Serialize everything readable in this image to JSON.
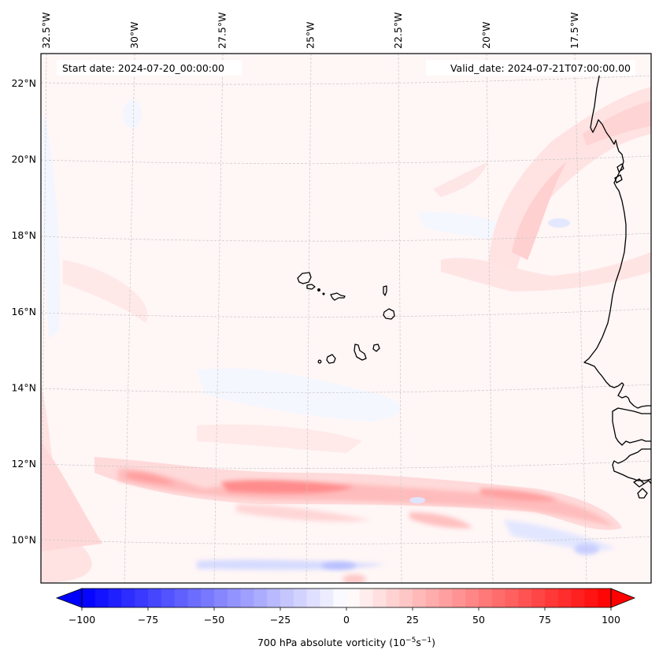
{
  "figure": {
    "start_date_text": "Start date: 2024-07-20_00:00:00",
    "valid_date_text": "Valid_date: 2024-07-21T07:00:00.00"
  },
  "chart_data": {
    "type": "heatmap",
    "title": "",
    "variable": "700 hPa absolute vorticity",
    "units_base": "10",
    "units_exp1": "−5",
    "units_mid": "s",
    "units_exp2": "−1",
    "colorbar_label_prefix": "700 hPa absolute vorticity (10",
    "colorbar_label_suffix": ")",
    "colormap": "bwr",
    "color_low": "#0000ff",
    "color_mid": "#ffffff",
    "color_high": "#ff0000",
    "levels": {
      "min": -100,
      "max": 100,
      "step": 5
    },
    "extend": "both",
    "colorbar_ticks": [
      -100,
      -75,
      -50,
      -25,
      0,
      25,
      50,
      75,
      100
    ],
    "colorbar_tick_labels": [
      "−100",
      "−75",
      "−50",
      "−25",
      "0",
      "25",
      "50",
      "75",
      "100"
    ],
    "lon_ticks": [
      -32.5,
      -30,
      -27.5,
      -25,
      -22.5,
      -20,
      -17.5
    ],
    "lon_tick_labels": [
      "32.5°W",
      "30°W",
      "27.5°W",
      "25°W",
      "22.5°W",
      "20°W",
      "17.5°W"
    ],
    "lat_ticks": [
      22,
      20,
      18,
      16,
      14,
      12,
      10
    ],
    "lat_tick_labels": [
      "22°N",
      "20°N",
      "18°N",
      "16°N",
      "14°N",
      "12°N",
      "10°N"
    ],
    "extent": {
      "lon": [
        -32.6,
        -15.2
      ],
      "lat": [
        8.9,
        22.8
      ]
    },
    "gridlines": true,
    "colorbar_position": "bottom",
    "features": [
      {
        "name": "vorticity-band-itcz",
        "lat": 11.3,
        "lon_start": -31.5,
        "lon_end": -16.0,
        "peak": 45,
        "description": "Zonal band of positive vorticity along ~11-12°N"
      },
      {
        "name": "negative-band-south",
        "lat": 9.4,
        "lon_start": -28.5,
        "lon_end": -23.0,
        "peak": -25,
        "description": "Weak negative vorticity strip near 9.5°N"
      },
      {
        "name": "negative-patch-se",
        "lat": 9.9,
        "lon_start": -18.5,
        "lon_end": -16.5,
        "peak": -20
      },
      {
        "name": "positive-streaks-ne",
        "lat": 19.0,
        "lon_start": -21.0,
        "lon_end": -15.3,
        "peak": 20,
        "description": "NE-SW oriented positive streaks off Mauritania coast"
      },
      {
        "name": "positive-streak-west",
        "lat": 12.5,
        "lon_start": -32.5,
        "lon_end": -31.0,
        "peak": 10
      }
    ],
    "land_labels": [
      "Cape Verde Islands",
      "West African coast"
    ]
  }
}
